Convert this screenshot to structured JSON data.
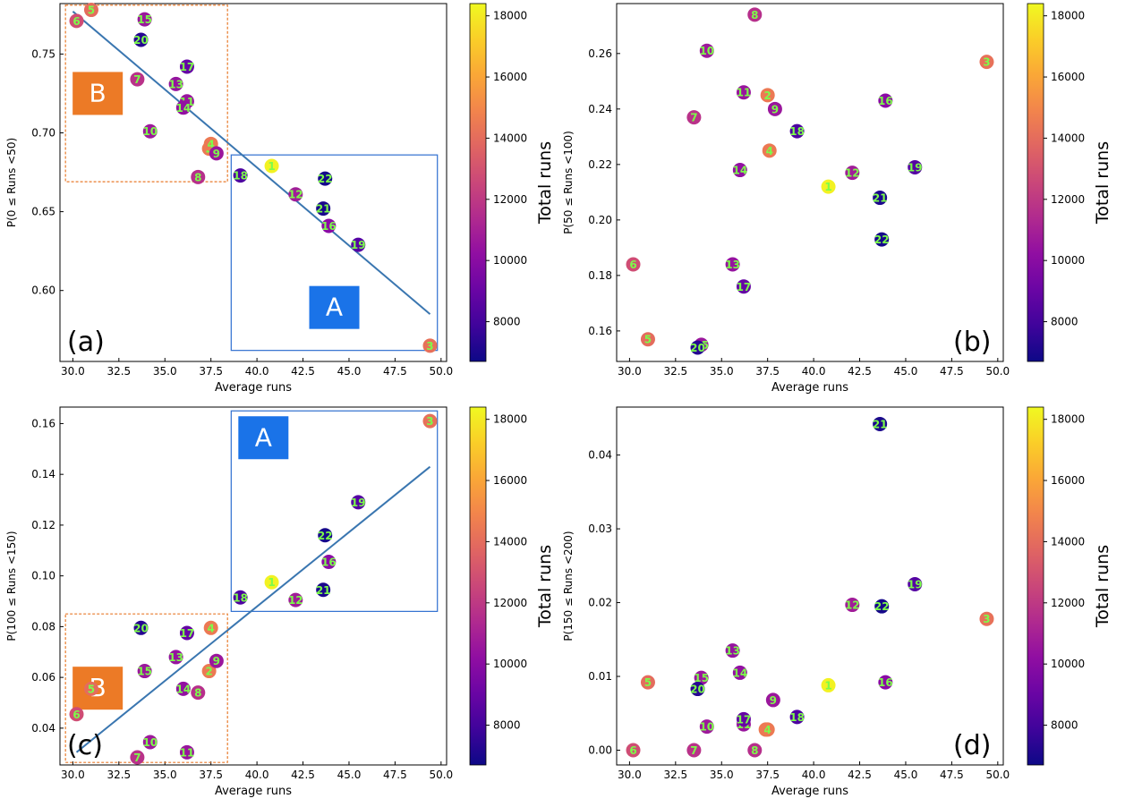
{
  "colorbar": {
    "label": "Total runs",
    "min": 6700,
    "max": 18400,
    "ticks": [
      8000,
      10000,
      12000,
      14000,
      16000,
      18000
    ],
    "colormap": "plasma"
  },
  "chart_data": [
    {
      "type": "scatter",
      "panel_label": "(a)",
      "xlabel": "Average runs",
      "ylabel": "P(0 ≤ Runs <50)",
      "xlim": [
        29.3,
        50.3
      ],
      "ylim": [
        0.555,
        0.782
      ],
      "xticks": [
        "30.0",
        "32.5",
        "35.0",
        "37.5",
        "40.0",
        "42.5",
        "45.0",
        "47.5",
        "50.0"
      ],
      "yticks": [
        "0.60",
        "0.65",
        "0.70",
        "0.75"
      ],
      "fit_line": {
        "x": [
          30.0,
          49.4
        ],
        "y": [
          0.777,
          0.585
        ]
      },
      "boxes": [
        {
          "label": "B",
          "kind": "dashed",
          "x": [
            29.6,
            38.4
          ],
          "y": [
            0.669,
            0.781
          ]
        },
        {
          "label": "A",
          "kind": "solid",
          "x": [
            38.6,
            49.8
          ],
          "y": [
            0.562,
            0.686
          ]
        }
      ],
      "points": [
        {
          "label": "1",
          "x": 40.8,
          "y": 0.679,
          "total": 18200
        },
        {
          "label": "2",
          "x": 37.4,
          "y": 0.69,
          "total": 14500
        },
        {
          "label": "3",
          "x": 49.4,
          "y": 0.565,
          "total": 14200
        },
        {
          "label": "4",
          "x": 37.5,
          "y": 0.693,
          "total": 14500
        },
        {
          "label": "5",
          "x": 31.0,
          "y": 0.778,
          "total": 14000
        },
        {
          "label": "6",
          "x": 30.2,
          "y": 0.771,
          "total": 12800
        },
        {
          "label": "7",
          "x": 33.5,
          "y": 0.734,
          "total": 11700
        },
        {
          "label": "8",
          "x": 36.8,
          "y": 0.672,
          "total": 11600
        },
        {
          "label": "9",
          "x": 37.8,
          "y": 0.687,
          "total": 10600
        },
        {
          "label": "10",
          "x": 34.2,
          "y": 0.701,
          "total": 10700
        },
        {
          "label": "11",
          "x": 36.2,
          "y": 0.72,
          "total": 10500
        },
        {
          "label": "12",
          "x": 42.1,
          "y": 0.661,
          "total": 10800
        },
        {
          "label": "13",
          "x": 35.6,
          "y": 0.731,
          "total": 10400
        },
        {
          "label": "14",
          "x": 36.0,
          "y": 0.716,
          "total": 10300
        },
        {
          "label": "15",
          "x": 33.9,
          "y": 0.772,
          "total": 10600
        },
        {
          "label": "16",
          "x": 43.9,
          "y": 0.641,
          "total": 10000
        },
        {
          "label": "17",
          "x": 36.2,
          "y": 0.742,
          "total": 8900
        },
        {
          "label": "18",
          "x": 39.1,
          "y": 0.673,
          "total": 8200
        },
        {
          "label": "19",
          "x": 45.5,
          "y": 0.629,
          "total": 8400
        },
        {
          "label": "20",
          "x": 33.7,
          "y": 0.759,
          "total": 7300
        },
        {
          "label": "21",
          "x": 43.6,
          "y": 0.652,
          "total": 7000
        },
        {
          "label": "22",
          "x": 43.7,
          "y": 0.671,
          "total": 6900
        }
      ]
    },
    {
      "type": "scatter",
      "panel_label": "(b)",
      "xlabel": "Average runs",
      "ylabel": "P(50 ≤ Runs <100)",
      "xlim": [
        29.3,
        50.3
      ],
      "ylim": [
        0.149,
        0.278
      ],
      "xticks": [
        "30.0",
        "32.5",
        "35.0",
        "37.5",
        "40.0",
        "42.5",
        "45.0",
        "47.5",
        "50.0"
      ],
      "yticks": [
        "0.16",
        "0.18",
        "0.20",
        "0.22",
        "0.24",
        "0.26"
      ],
      "points": [
        {
          "label": "1",
          "x": 40.8,
          "y": 0.212,
          "total": 18200
        },
        {
          "label": "2",
          "x": 37.5,
          "y": 0.245,
          "total": 14500
        },
        {
          "label": "3",
          "x": 49.4,
          "y": 0.257,
          "total": 14200
        },
        {
          "label": "4",
          "x": 37.6,
          "y": 0.225,
          "total": 14500
        },
        {
          "label": "5",
          "x": 31.0,
          "y": 0.157,
          "total": 14000
        },
        {
          "label": "6",
          "x": 30.2,
          "y": 0.184,
          "total": 12800
        },
        {
          "label": "7",
          "x": 33.5,
          "y": 0.237,
          "total": 11700
        },
        {
          "label": "8",
          "x": 36.8,
          "y": 0.274,
          "total": 11600
        },
        {
          "label": "9",
          "x": 37.9,
          "y": 0.24,
          "total": 10600
        },
        {
          "label": "10",
          "x": 34.2,
          "y": 0.261,
          "total": 10700
        },
        {
          "label": "11",
          "x": 36.2,
          "y": 0.246,
          "total": 10500
        },
        {
          "label": "12",
          "x": 42.1,
          "y": 0.217,
          "total": 10800
        },
        {
          "label": "13",
          "x": 35.6,
          "y": 0.184,
          "total": 10400
        },
        {
          "label": "14",
          "x": 36.0,
          "y": 0.218,
          "total": 10300
        },
        {
          "label": "15",
          "x": 33.9,
          "y": 0.155,
          "total": 10600
        },
        {
          "label": "16",
          "x": 43.9,
          "y": 0.243,
          "total": 10000
        },
        {
          "label": "17",
          "x": 36.2,
          "y": 0.176,
          "total": 8900
        },
        {
          "label": "18",
          "x": 39.1,
          "y": 0.232,
          "total": 8200
        },
        {
          "label": "19",
          "x": 45.5,
          "y": 0.219,
          "total": 8400
        },
        {
          "label": "20",
          "x": 33.7,
          "y": 0.154,
          "total": 7300
        },
        {
          "label": "21",
          "x": 43.6,
          "y": 0.208,
          "total": 7000
        },
        {
          "label": "22",
          "x": 43.7,
          "y": 0.193,
          "total": 6900
        }
      ]
    },
    {
      "type": "scatter",
      "panel_label": "(c)",
      "xlabel": "Average runs",
      "ylabel": "P(100 ≤ Runs <150)",
      "xlim": [
        29.3,
        50.3
      ],
      "ylim": [
        0.0255,
        0.1665
      ],
      "xticks": [
        "30.0",
        "32.5",
        "35.0",
        "37.5",
        "40.0",
        "42.5",
        "45.0",
        "47.5",
        "50.0"
      ],
      "yticks": [
        "0.04",
        "0.06",
        "0.08",
        "0.10",
        "0.12",
        "0.14",
        "0.16"
      ],
      "fit_line": {
        "x": [
          30.2,
          49.4
        ],
        "y": [
          0.0305,
          0.143
        ]
      },
      "boxes": [
        {
          "label": "B",
          "kind": "dashed",
          "x": [
            29.6,
            38.4
          ],
          "y": [
            0.0265,
            0.085
          ]
        },
        {
          "label": "A",
          "kind": "solid",
          "x": [
            38.6,
            49.8
          ],
          "y": [
            0.086,
            0.165
          ]
        }
      ],
      "points": [
        {
          "label": "1",
          "x": 40.8,
          "y": 0.0975,
          "total": 18200
        },
        {
          "label": "2",
          "x": 37.4,
          "y": 0.0625,
          "total": 14500
        },
        {
          "label": "3",
          "x": 49.4,
          "y": 0.161,
          "total": 14200
        },
        {
          "label": "4",
          "x": 37.5,
          "y": 0.0795,
          "total": 14500
        },
        {
          "label": "5",
          "x": 31.0,
          "y": 0.0555,
          "total": 14000
        },
        {
          "label": "6",
          "x": 30.2,
          "y": 0.0455,
          "total": 12800
        },
        {
          "label": "7",
          "x": 33.5,
          "y": 0.0285,
          "total": 11700
        },
        {
          "label": "8",
          "x": 36.8,
          "y": 0.054,
          "total": 11600
        },
        {
          "label": "9",
          "x": 37.8,
          "y": 0.0665,
          "total": 10600
        },
        {
          "label": "10",
          "x": 34.2,
          "y": 0.0345,
          "total": 10700
        },
        {
          "label": "11",
          "x": 36.2,
          "y": 0.0305,
          "total": 10500
        },
        {
          "label": "12",
          "x": 42.1,
          "y": 0.0905,
          "total": 10800
        },
        {
          "label": "13",
          "x": 35.6,
          "y": 0.068,
          "total": 10400
        },
        {
          "label": "14",
          "x": 36.0,
          "y": 0.0555,
          "total": 10300
        },
        {
          "label": "15",
          "x": 33.9,
          "y": 0.0625,
          "total": 10600
        },
        {
          "label": "16",
          "x": 43.9,
          "y": 0.1055,
          "total": 10000
        },
        {
          "label": "17",
          "x": 36.2,
          "y": 0.0775,
          "total": 8900
        },
        {
          "label": "18",
          "x": 39.1,
          "y": 0.0915,
          "total": 8200
        },
        {
          "label": "19",
          "x": 45.5,
          "y": 0.129,
          "total": 8400
        },
        {
          "label": "20",
          "x": 33.7,
          "y": 0.0795,
          "total": 7300
        },
        {
          "label": "21",
          "x": 43.6,
          "y": 0.0945,
          "total": 7000
        },
        {
          "label": "22",
          "x": 43.7,
          "y": 0.116,
          "total": 6900
        }
      ]
    },
    {
      "type": "scatter",
      "panel_label": "(d)",
      "xlabel": "Average runs",
      "ylabel": "P(150 ≤ Runs <200)",
      "xlim": [
        29.3,
        50.3
      ],
      "ylim": [
        -0.002,
        0.0465
      ],
      "xticks": [
        "30.0",
        "32.5",
        "35.0",
        "37.5",
        "40.0",
        "42.5",
        "45.0",
        "47.5",
        "50.0"
      ],
      "yticks": [
        "0.00",
        "0.01",
        "0.02",
        "0.03",
        "0.04"
      ],
      "points": [
        {
          "label": "1",
          "x": 40.8,
          "y": 0.0088,
          "total": 18200
        },
        {
          "label": "2",
          "x": 37.4,
          "y": 0.0028,
          "total": 14500
        },
        {
          "label": "3",
          "x": 49.4,
          "y": 0.0178,
          "total": 14200
        },
        {
          "label": "4",
          "x": 37.5,
          "y": 0.0028,
          "total": 14500
        },
        {
          "label": "5",
          "x": 31.0,
          "y": 0.0092,
          "total": 14000
        },
        {
          "label": "6",
          "x": 30.2,
          "y": 0.0,
          "total": 12800
        },
        {
          "label": "7",
          "x": 33.5,
          "y": 0.0,
          "total": 11700
        },
        {
          "label": "8",
          "x": 36.8,
          "y": 0.0,
          "total": 11600
        },
        {
          "label": "9",
          "x": 37.8,
          "y": 0.0068,
          "total": 10600
        },
        {
          "label": "10",
          "x": 34.2,
          "y": 0.0032,
          "total": 10700
        },
        {
          "label": "11",
          "x": 36.2,
          "y": 0.0035,
          "total": 10500
        },
        {
          "label": "12",
          "x": 42.1,
          "y": 0.0197,
          "total": 10800
        },
        {
          "label": "13",
          "x": 35.6,
          "y": 0.0135,
          "total": 10400
        },
        {
          "label": "14",
          "x": 36.0,
          "y": 0.0105,
          "total": 10300
        },
        {
          "label": "15",
          "x": 33.9,
          "y": 0.0098,
          "total": 10600
        },
        {
          "label": "16",
          "x": 43.9,
          "y": 0.0092,
          "total": 10000
        },
        {
          "label": "17",
          "x": 36.2,
          "y": 0.0042,
          "total": 8900
        },
        {
          "label": "18",
          "x": 39.1,
          "y": 0.0045,
          "total": 8200
        },
        {
          "label": "19",
          "x": 45.5,
          "y": 0.0225,
          "total": 8400
        },
        {
          "label": "20",
          "x": 33.7,
          "y": 0.0083,
          "total": 7300
        },
        {
          "label": "21",
          "x": 43.6,
          "y": 0.0442,
          "total": 7000
        },
        {
          "label": "22",
          "x": 43.7,
          "y": 0.0195,
          "total": 6900
        }
      ]
    }
  ]
}
